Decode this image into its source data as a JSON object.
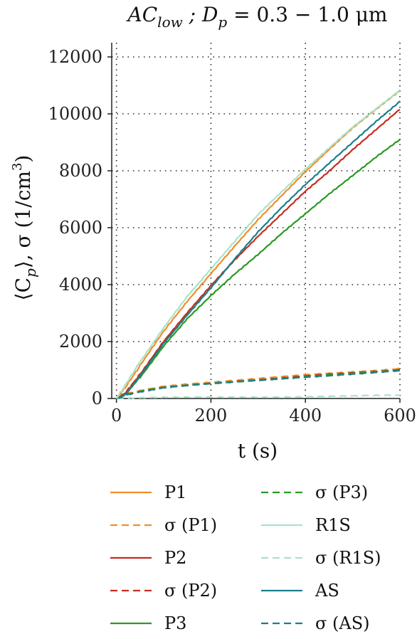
{
  "chart_data": {
    "type": "line",
    "title": "AC_low ; D_p = 0.3 − 1.0 μm",
    "title_parts": {
      "main1": "AC",
      "sub1": "low",
      "mid": " ; D",
      "sub2": "p",
      "tail": " = 0.3 − 1.0 μm"
    },
    "xlabel": "t (s)",
    "ylabel": "⟨Cp⟩, σ (1/cm³)",
    "ylabel_parts": {
      "a": "⟨C",
      "b": "p",
      "c": "⟩, σ (1/cm",
      "d": "3",
      "e": ")"
    },
    "xlim": [
      -10,
      600
    ],
    "ylim": [
      0,
      12500
    ],
    "xticks": [
      "0",
      "200",
      "400",
      "600"
    ],
    "yticks": [
      "0",
      "2000",
      "4000",
      "6000",
      "8000",
      "10000",
      "12000"
    ],
    "grid": true,
    "legend_position": "below",
    "series": [
      {
        "name": "P1",
        "color": "#f28e2b",
        "dash": "solid",
        "x": [
          0,
          10,
          20,
          50,
          100,
          150,
          200,
          250,
          300,
          350,
          400,
          450,
          500,
          550,
          600
        ],
        "y": [
          0,
          200,
          420,
          1150,
          2350,
          3400,
          4380,
          5350,
          6300,
          7150,
          7980,
          8750,
          9500,
          10150,
          10800
        ]
      },
      {
        "name": "σ (P1)",
        "color": "#f28e2b",
        "dash": "dashed",
        "x": [
          0,
          15,
          50,
          100,
          150,
          200,
          250,
          300,
          350,
          400,
          450,
          500,
          550,
          600
        ],
        "y": [
          0,
          150,
          280,
          440,
          520,
          580,
          640,
          700,
          760,
          820,
          880,
          930,
          990,
          1060
        ]
      },
      {
        "name": "P2",
        "color": "#c62d1f",
        "dash": "solid",
        "x": [
          0,
          10,
          20,
          50,
          100,
          150,
          200,
          250,
          300,
          350,
          400,
          450,
          500,
          550,
          600
        ],
        "y": [
          0,
          80,
          220,
          850,
          2000,
          3000,
          3950,
          4850,
          5700,
          6500,
          7300,
          8000,
          8750,
          9450,
          10150
        ]
      },
      {
        "name": "σ (P2)",
        "color": "#c62d1f",
        "dash": "dashed",
        "x": [
          0,
          15,
          50,
          100,
          150,
          200,
          250,
          300,
          350,
          400,
          450,
          500,
          550,
          600
        ],
        "y": [
          0,
          120,
          250,
          390,
          470,
          540,
          600,
          660,
          720,
          780,
          840,
          890,
          950,
          1010
        ]
      },
      {
        "name": "P3",
        "color": "#2a9a24",
        "dash": "solid",
        "x": [
          0,
          10,
          20,
          50,
          100,
          150,
          200,
          250,
          300,
          350,
          400,
          450,
          500,
          550,
          600
        ],
        "y": [
          0,
          60,
          180,
          750,
          1850,
          2800,
          3600,
          4350,
          5050,
          5800,
          6500,
          7200,
          7850,
          8500,
          9100
        ]
      },
      {
        "name": "σ (P3)",
        "color": "#2a9a24",
        "dash": "dashed",
        "x": [
          0,
          15,
          50,
          100,
          150,
          200,
          250,
          300,
          350,
          400,
          450,
          500,
          550,
          600
        ],
        "y": [
          0,
          110,
          240,
          380,
          460,
          530,
          590,
          650,
          710,
          760,
          820,
          870,
          930,
          980
        ]
      },
      {
        "name": "R1S",
        "color": "#a8e3c8",
        "dash": "solid",
        "x": [
          0,
          10,
          20,
          50,
          100,
          150,
          200,
          250,
          300,
          350,
          400,
          450,
          500,
          550,
          600
        ],
        "y": [
          0,
          250,
          500,
          1300,
          2500,
          3600,
          4550,
          5500,
          6450,
          7250,
          8050,
          8800,
          9550,
          10200,
          10850
        ]
      },
      {
        "name": "σ (R1S)",
        "color": "#a8e3c8",
        "dash": "dashed",
        "x": [
          0,
          50,
          100,
          150,
          200,
          250,
          300,
          350,
          400,
          450,
          500,
          550,
          600
        ],
        "y": [
          0,
          20,
          30,
          40,
          45,
          50,
          55,
          60,
          70,
          80,
          90,
          100,
          110
        ]
      },
      {
        "name": "AS",
        "color": "#1a7f8c",
        "dash": "solid",
        "x": [
          0,
          10,
          20,
          50,
          100,
          150,
          200,
          250,
          300,
          350,
          400,
          450,
          500,
          550,
          600
        ],
        "y": [
          0,
          50,
          150,
          800,
          1950,
          2950,
          3900,
          4900,
          5850,
          6700,
          7500,
          8250,
          9000,
          9750,
          10450
        ]
      },
      {
        "name": "σ (AS)",
        "color": "#1a7f8c",
        "dash": "dashed",
        "x": [
          0,
          15,
          50,
          100,
          150,
          200,
          250,
          300,
          350,
          400,
          450,
          500,
          550,
          600
        ],
        "y": [
          0,
          100,
          230,
          370,
          450,
          520,
          580,
          640,
          700,
          760,
          810,
          860,
          910,
          970
        ]
      }
    ]
  }
}
